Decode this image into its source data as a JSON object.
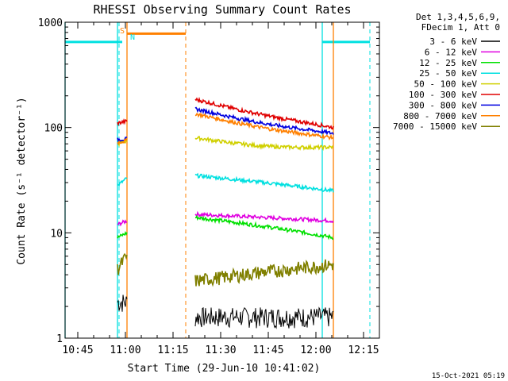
{
  "chart_data": {
    "type": "line",
    "title": "RHESSI Observing Summary Count Rates",
    "xlabel": "Start Time (29-Jun-10 10:41:02)",
    "ylabel": "Count Rate (s⁻¹ detector⁻¹)",
    "yscale": "log",
    "ylim": [
      1,
      1000
    ],
    "xlim": [
      "10:41",
      "12:20"
    ],
    "x_ticks": [
      "10:45",
      "11:00",
      "11:15",
      "11:30",
      "11:45",
      "12:00",
      "12:15"
    ],
    "y_ticks": [
      "1",
      "10",
      "100",
      "1000"
    ],
    "footer_date": "15-Oct-2021 05:19",
    "legend_header": [
      "Det 1,3,4,5,6,9,",
      "FDecim 1, Att 0"
    ],
    "flags": {
      "saa_label": "S",
      "night_label": "N"
    },
    "data_segments": [
      {
        "start": "10:57:30",
        "end": "11:00:30"
      },
      {
        "start": "11:22:00",
        "end": "12:05:30"
      }
    ],
    "series": [
      {
        "name": "3 - 6 keV",
        "color": "#000000",
        "values": [
          [
            2.2,
            2.2
          ],
          [
            1.6,
            1.6
          ]
        ]
      },
      {
        "name": "6 - 12 keV",
        "color": "#e000e0",
        "values": [
          [
            12,
            13
          ],
          [
            15,
            13
          ]
        ]
      },
      {
        "name": "12 - 25 keV",
        "color": "#00e000",
        "values": [
          [
            9,
            10
          ],
          [
            14,
            9
          ]
        ]
      },
      {
        "name": "25 - 50 keV",
        "color": "#00e0e0",
        "values": [
          [
            28,
            33
          ],
          [
            35,
            25
          ]
        ]
      },
      {
        "name": "50 - 100 keV",
        "color": "#d0d000",
        "values": [
          [
            70,
            75
          ],
          [
            80,
            65
          ]
        ]
      },
      {
        "name": "100 - 300 keV",
        "color": "#e00000",
        "values": [
          [
            110,
            115
          ],
          [
            185,
            100
          ]
        ]
      },
      {
        "name": "300 - 800 keV",
        "color": "#0000e0",
        "values": [
          [
            77,
            78
          ],
          [
            150,
            88
          ]
        ]
      },
      {
        "name": "800 - 7000 keV",
        "color": "#ff8000",
        "values": [
          [
            72,
            75
          ],
          [
            135,
            80
          ]
        ]
      },
      {
        "name": "7000 - 15000 keV",
        "color": "#808000",
        "values": [
          [
            4.5,
            6
          ],
          [
            3.5,
            5
          ]
        ]
      }
    ]
  }
}
